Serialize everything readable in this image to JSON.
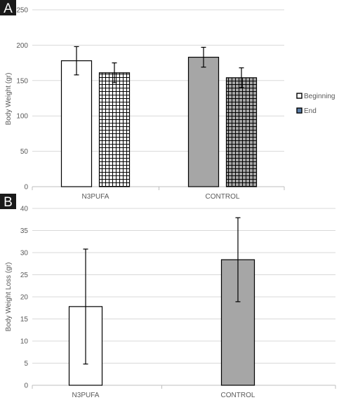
{
  "colors": {
    "grid": "#d9d9d9",
    "axis": "#bfbfbf",
    "text": "#595959",
    "panel_label_bg": "#1a1a1a",
    "panel_label_fg": "#ffffff",
    "control_fill": "#a6a6a6",
    "bar_edge": "#000000"
  },
  "chart_data": [
    {
      "type": "bar",
      "panel_label": "A",
      "ylabel": "Body Weight (gr)",
      "xlabel": "",
      "ylim": [
        0,
        250
      ],
      "yticks": [
        0,
        50,
        100,
        150,
        200,
        250
      ],
      "categories": [
        "N3PUFA",
        "CONTROL"
      ],
      "grid": true,
      "legend_position": "right",
      "series": [
        {
          "name": "Beginning",
          "values": [
            178,
            183
          ],
          "error": [
            20,
            14
          ],
          "pattern": "solid"
        },
        {
          "name": "End",
          "values": [
            161,
            154
          ],
          "error": [
            14,
            14
          ],
          "pattern": "grid"
        }
      ]
    },
    {
      "type": "bar",
      "panel_label": "B",
      "ylabel": "Body Weight Loss (gr)",
      "xlabel": "",
      "ylim": [
        0,
        40
      ],
      "yticks": [
        0,
        5,
        10,
        15,
        20,
        25,
        30,
        35,
        40
      ],
      "categories": [
        "N3PUFA",
        "CONTROL"
      ],
      "grid": true,
      "legend_position": "none",
      "series": [
        {
          "values": [
            17.8,
            28.4
          ],
          "error": [
            13,
            9.5
          ]
        }
      ]
    }
  ]
}
